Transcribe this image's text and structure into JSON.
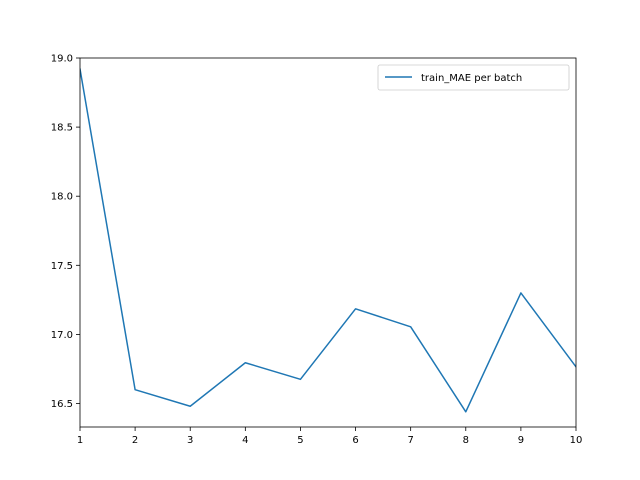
{
  "chart_data": {
    "type": "line",
    "title": "",
    "xlabel": "",
    "ylabel": "",
    "x": [
      1,
      2,
      3,
      4,
      5,
      6,
      7,
      8,
      9,
      10
    ],
    "series": [
      {
        "name": "train_MAE per batch",
        "color": "#1f77b4",
        "values": [
          18.92,
          16.6,
          16.48,
          16.795,
          16.675,
          17.185,
          17.055,
          16.44,
          17.3,
          16.765
        ]
      }
    ],
    "xlim": [
      1,
      10
    ],
    "ylim": [
      16.33,
      19.0
    ],
    "xticks": [
      "1",
      "2",
      "3",
      "4",
      "5",
      "6",
      "7",
      "8",
      "9",
      "10"
    ],
    "yticks": [
      "16.5",
      "17.0",
      "17.5",
      "18.0",
      "18.5",
      "19.0"
    ],
    "grid": false,
    "legend": "top-right"
  }
}
